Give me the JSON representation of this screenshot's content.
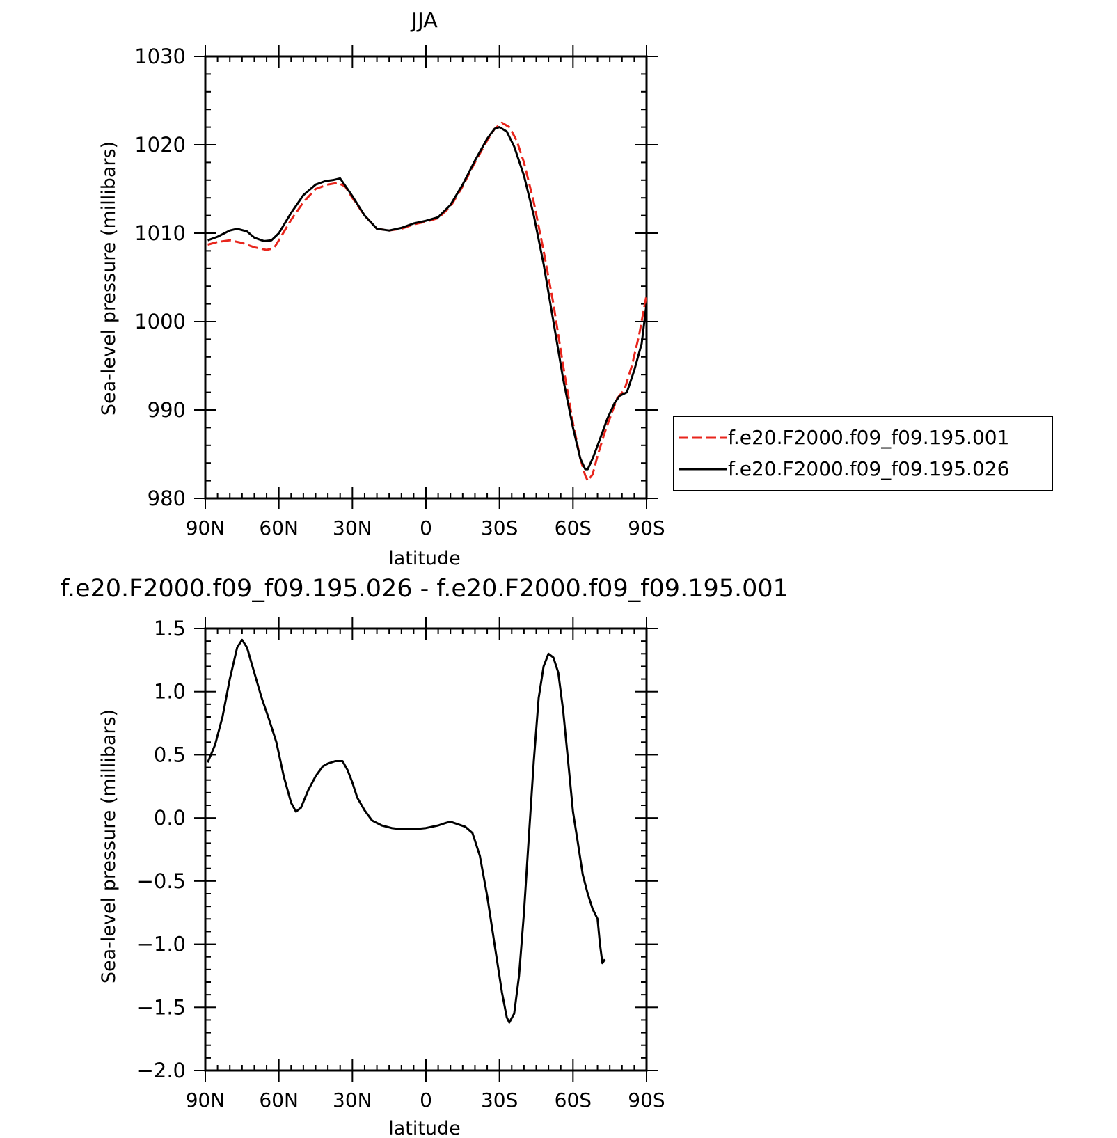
{
  "chart_data": [
    {
      "type": "line",
      "title": "JJA",
      "xlabel": "latitude",
      "ylabel": "Sea-level pressure (millibars)",
      "xlim": [
        90,
        -90
      ],
      "ylim": [
        980,
        1030
      ],
      "x_ticks": [
        90,
        60,
        30,
        0,
        -30,
        -60,
        -90
      ],
      "x_tick_labels": [
        "90N",
        "60N",
        "30N",
        "0",
        "30S",
        "60S",
        "90S"
      ],
      "y_ticks": [
        980,
        990,
        1000,
        1010,
        1020,
        1030
      ],
      "y_tick_labels": [
        "980",
        "990",
        "1000",
        "1010",
        "1020",
        "1030"
      ],
      "legend_position": "right",
      "series": [
        {
          "name": "f.e20.F2000.f09_f09.195.001",
          "color": "#e8251c",
          "dash": "dashed",
          "points": [
            [
              89,
              1008.7
            ],
            [
              85,
              1009
            ],
            [
              80,
              1009.2
            ],
            [
              75,
              1008.9
            ],
            [
              70,
              1008.4
            ],
            [
              65,
              1008.1
            ],
            [
              62,
              1008.3
            ],
            [
              60,
              1009.2
            ],
            [
              55,
              1011.5
            ],
            [
              50,
              1013.5
            ],
            [
              45,
              1015
            ],
            [
              40,
              1015.5
            ],
            [
              36,
              1015.7
            ],
            [
              33,
              1015.3
            ],
            [
              30,
              1014
            ],
            [
              25,
              1012
            ],
            [
              20,
              1010.5
            ],
            [
              15,
              1010.3
            ],
            [
              10,
              1010.5
            ],
            [
              5,
              1011
            ],
            [
              0,
              1011.3
            ],
            [
              -5,
              1011.7
            ],
            [
              -10,
              1013
            ],
            [
              -15,
              1015.3
            ],
            [
              -20,
              1018
            ],
            [
              -25,
              1020.5
            ],
            [
              -28,
              1021.8
            ],
            [
              -31,
              1022.5
            ],
            [
              -34,
              1022
            ],
            [
              -37,
              1020.5
            ],
            [
              -40,
              1018
            ],
            [
              -44,
              1013.5
            ],
            [
              -48,
              1008
            ],
            [
              -52,
              1002
            ],
            [
              -56,
              995
            ],
            [
              -60,
              988.5
            ],
            [
              -63,
              984.5
            ],
            [
              -65,
              982.6
            ],
            [
              -66,
              982
            ],
            [
              -68,
              982.7
            ],
            [
              -70,
              984.8
            ],
            [
              -73,
              987.5
            ],
            [
              -76,
              989.8
            ],
            [
              -78,
              991.3
            ],
            [
              -81,
              992.3
            ],
            [
              -84,
              995
            ],
            [
              -87,
              998.5
            ],
            [
              -90,
              1003
            ]
          ]
        },
        {
          "name": "f.e20.F2000.f09_f09.195.026",
          "color": "#000000",
          "dash": "solid",
          "points": [
            [
              89,
              1009.2
            ],
            [
              85,
              1009.6
            ],
            [
              80,
              1010.3
            ],
            [
              77,
              1010.5
            ],
            [
              73,
              1010.2
            ],
            [
              70,
              1009.5
            ],
            [
              66,
              1009.1
            ],
            [
              63,
              1009.2
            ],
            [
              60,
              1010
            ],
            [
              55,
              1012.3
            ],
            [
              50,
              1014.3
            ],
            [
              45,
              1015.5
            ],
            [
              41,
              1015.9
            ],
            [
              38,
              1016
            ],
            [
              35,
              1016.2
            ],
            [
              32,
              1015
            ],
            [
              30,
              1014.2
            ],
            [
              25,
              1012
            ],
            [
              20,
              1010.5
            ],
            [
              15,
              1010.3
            ],
            [
              10,
              1010.6
            ],
            [
              5,
              1011.1
            ],
            [
              0,
              1011.4
            ],
            [
              -5,
              1011.8
            ],
            [
              -10,
              1013.2
            ],
            [
              -15,
              1015.5
            ],
            [
              -20,
              1018.2
            ],
            [
              -25,
              1020.7
            ],
            [
              -28,
              1021.8
            ],
            [
              -30,
              1022
            ],
            [
              -33,
              1021.5
            ],
            [
              -36,
              1019.8
            ],
            [
              -40,
              1016.5
            ],
            [
              -44,
              1012
            ],
            [
              -48,
              1006.5
            ],
            [
              -52,
              1000
            ],
            [
              -56,
              993.5
            ],
            [
              -60,
              988
            ],
            [
              -63,
              984.5
            ],
            [
              -65,
              983.3
            ],
            [
              -66,
              983.3
            ],
            [
              -68,
              984.5
            ],
            [
              -71,
              986.7
            ],
            [
              -74,
              989
            ],
            [
              -77,
              990.8
            ],
            [
              -79,
              991.6
            ],
            [
              -82,
              992
            ],
            [
              -85,
              994.5
            ],
            [
              -88,
              997.5
            ],
            [
              -90,
              1002
            ]
          ]
        }
      ]
    },
    {
      "type": "line",
      "title": "f.e20.F2000.f09_f09.195.026 - f.e20.F2000.f09_f09.195.001",
      "xlabel": "latitude",
      "ylabel": "Sea-level pressure (millibars)",
      "xlim": [
        90,
        -90
      ],
      "ylim": [
        -2.0,
        1.5
      ],
      "x_ticks": [
        90,
        60,
        30,
        0,
        -30,
        -60,
        -90
      ],
      "x_tick_labels": [
        "90N",
        "60N",
        "30N",
        "0",
        "30S",
        "60S",
        "90S"
      ],
      "y_ticks": [
        -2.0,
        -1.5,
        -1.0,
        -0.5,
        0.0,
        0.5,
        1.0,
        1.5
      ],
      "y_tick_labels": [
        "−2.0",
        "−1.5",
        "−1.0",
        "−0.5",
        "0.0",
        "0.5",
        "1.0",
        "1.5"
      ],
      "series": [
        {
          "color": "#000000",
          "dash": "solid",
          "points": [
            [
              89,
              0.44
            ],
            [
              86,
              0.58
            ],
            [
              83,
              0.8
            ],
            [
              80,
              1.1
            ],
            [
              77,
              1.35
            ],
            [
              75,
              1.41
            ],
            [
              73,
              1.35
            ],
            [
              70,
              1.15
            ],
            [
              67,
              0.95
            ],
            [
              64,
              0.78
            ],
            [
              61,
              0.6
            ],
            [
              58,
              0.33
            ],
            [
              55,
              0.12
            ],
            [
              53,
              0.05
            ],
            [
              51,
              0.08
            ],
            [
              48,
              0.22
            ],
            [
              45,
              0.33
            ],
            [
              42,
              0.41
            ],
            [
              40,
              0.43
            ],
            [
              37,
              0.45
            ],
            [
              34,
              0.45
            ],
            [
              32,
              0.38
            ],
            [
              30,
              0.28
            ],
            [
              28,
              0.16
            ],
            [
              25,
              0.06
            ],
            [
              22,
              -0.02
            ],
            [
              18,
              -0.06
            ],
            [
              14,
              -0.08
            ],
            [
              10,
              -0.09
            ],
            [
              5,
              -0.09
            ],
            [
              0,
              -0.08
            ],
            [
              -5,
              -0.06
            ],
            [
              -8,
              -0.04
            ],
            [
              -10,
              -0.03
            ],
            [
              -13,
              -0.05
            ],
            [
              -16,
              -0.07
            ],
            [
              -19,
              -0.12
            ],
            [
              -22,
              -0.3
            ],
            [
              -25,
              -0.62
            ],
            [
              -28,
              -1.0
            ],
            [
              -31,
              -1.38
            ],
            [
              -33,
              -1.58
            ],
            [
              -34,
              -1.62
            ],
            [
              -36,
              -1.55
            ],
            [
              -38,
              -1.25
            ],
            [
              -40,
              -0.75
            ],
            [
              -42,
              -0.15
            ],
            [
              -44,
              0.45
            ],
            [
              -46,
              0.95
            ],
            [
              -48,
              1.2
            ],
            [
              -50,
              1.3
            ],
            [
              -52,
              1.27
            ],
            [
              -54,
              1.15
            ],
            [
              -56,
              0.85
            ],
            [
              -58,
              0.45
            ],
            [
              -60,
              0.05
            ],
            [
              -62,
              -0.2
            ],
            [
              -64,
              -0.45
            ],
            [
              -66,
              -0.6
            ],
            [
              -68,
              -0.72
            ],
            [
              -70,
              -0.8
            ],
            [
              -71,
              -1.0
            ],
            [
              -72,
              -1.15
            ],
            [
              -73,
              -1.12
            ]
          ]
        }
      ]
    }
  ]
}
